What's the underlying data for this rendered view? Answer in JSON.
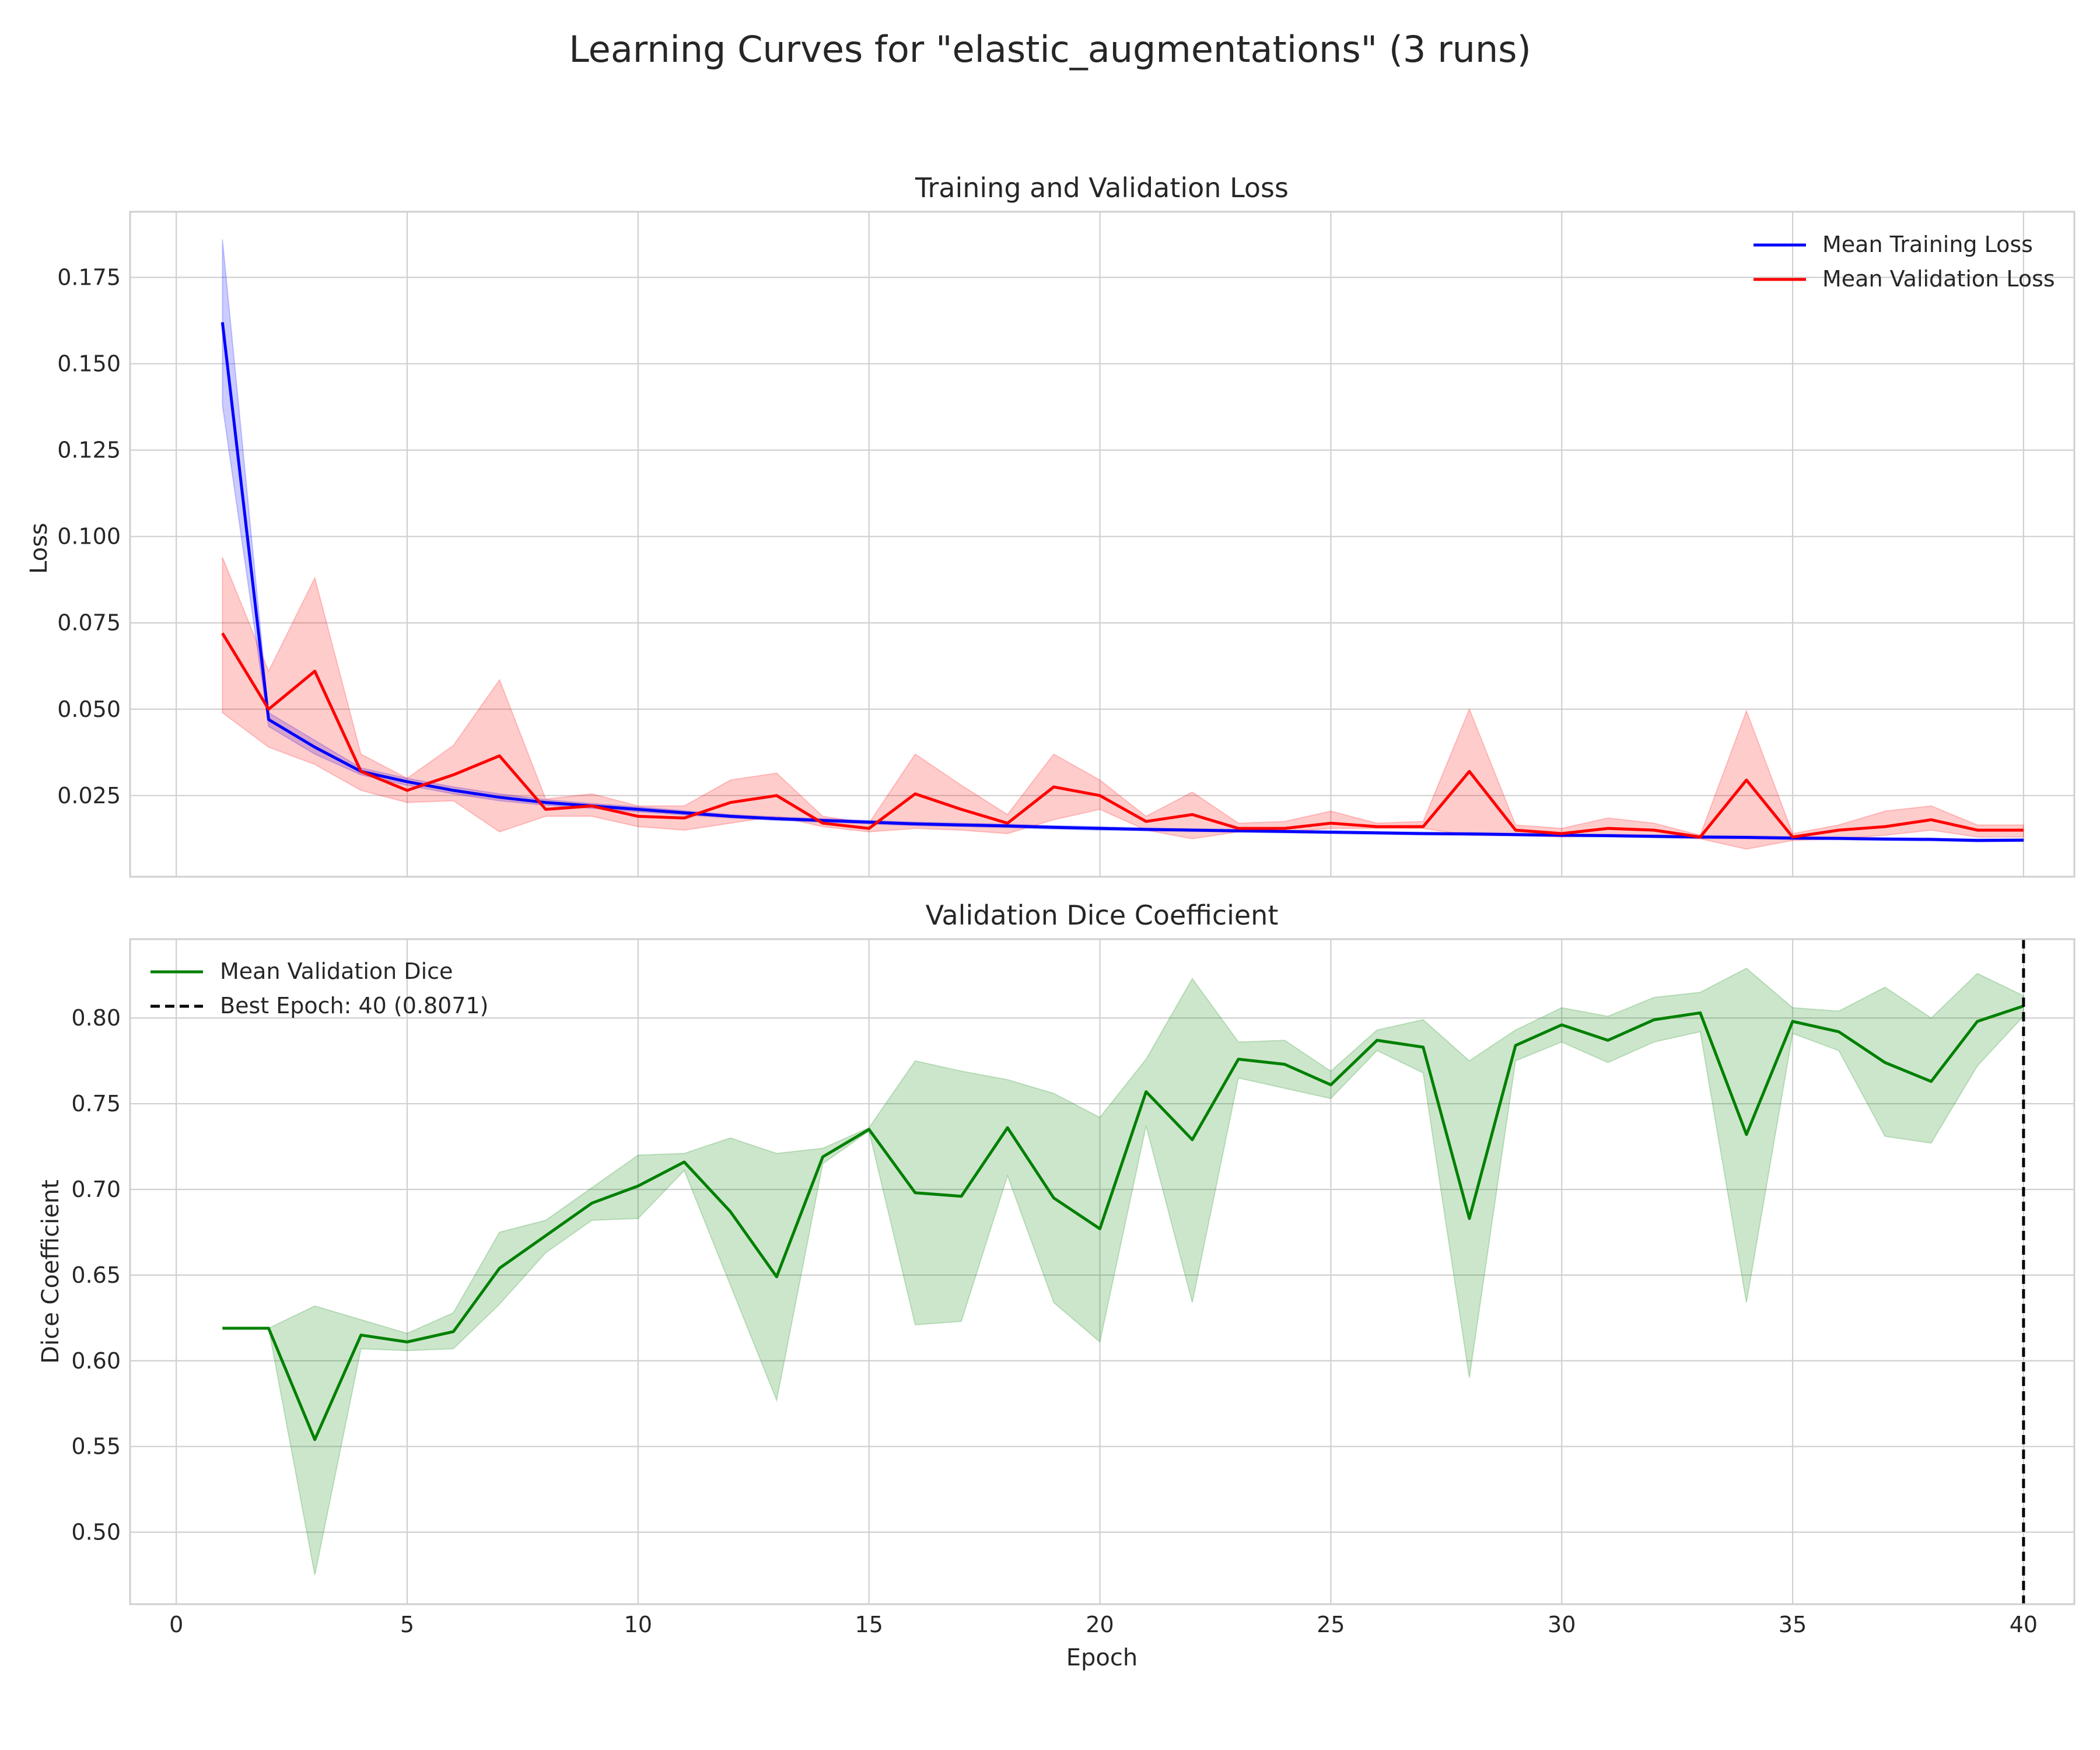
{
  "figure": {
    "title": "Learning Curves for \"elastic_augmentations\" (3 runs)"
  },
  "chart_data": [
    {
      "type": "line",
      "title": "Training and Validation Loss",
      "xlabel": "",
      "ylabel": "Loss",
      "xlim": [
        -1,
        41.1
      ],
      "ylim": [
        0.0015,
        0.194
      ],
      "xticks": [
        0,
        5,
        10,
        15,
        20,
        25,
        30,
        35,
        40
      ],
      "yticks": [
        0.025,
        0.05,
        0.075,
        0.1,
        0.125,
        0.15,
        0.175
      ],
      "ytick_labels": [
        "0.025",
        "0.050",
        "0.075",
        "0.100",
        "0.125",
        "0.150",
        "0.175"
      ],
      "grid": true,
      "legend_position": "top-right",
      "x": [
        1,
        2,
        3,
        4,
        5,
        6,
        7,
        8,
        9,
        10,
        11,
        12,
        13,
        14,
        15,
        16,
        17,
        18,
        19,
        20,
        21,
        22,
        23,
        24,
        25,
        26,
        27,
        28,
        29,
        30,
        31,
        32,
        33,
        34,
        35,
        36,
        37,
        38,
        39,
        40
      ],
      "series": [
        {
          "name": "Mean Training Loss",
          "color": "#0000ff",
          "values": [
            0.162,
            0.047,
            0.039,
            0.032,
            0.029,
            0.0265,
            0.0245,
            0.023,
            0.022,
            0.021,
            0.02,
            0.019,
            0.0183,
            0.0178,
            0.0173,
            0.0168,
            0.0165,
            0.0162,
            0.0158,
            0.0155,
            0.0152,
            0.015,
            0.0148,
            0.0146,
            0.0144,
            0.0142,
            0.014,
            0.0139,
            0.0137,
            0.0135,
            0.0134,
            0.0132,
            0.013,
            0.0129,
            0.0127,
            0.0126,
            0.0124,
            0.0123,
            0.012,
            0.0121
          ],
          "lower": [
            0.138,
            0.045,
            0.037,
            0.031,
            0.028,
            0.0255,
            0.0235,
            0.0222,
            0.0213,
            0.0203,
            0.0194,
            0.0185,
            0.0178,
            0.0173,
            0.0168,
            0.0163,
            0.016,
            0.0157,
            0.0153,
            0.015,
            0.0148,
            0.0146,
            0.0144,
            0.0142,
            0.014,
            0.0138,
            0.0136,
            0.0135,
            0.0133,
            0.0131,
            0.013,
            0.0128,
            0.0126,
            0.0125,
            0.0123,
            0.0122,
            0.012,
            0.0119,
            0.0116,
            0.0117
          ],
          "upper": [
            0.186,
            0.049,
            0.041,
            0.033,
            0.03,
            0.0275,
            0.0255,
            0.0238,
            0.0227,
            0.0217,
            0.0206,
            0.0195,
            0.0188,
            0.0183,
            0.0178,
            0.0173,
            0.017,
            0.0167,
            0.0163,
            0.016,
            0.0156,
            0.0154,
            0.0152,
            0.015,
            0.0148,
            0.0146,
            0.0144,
            0.0143,
            0.0141,
            0.0139,
            0.0138,
            0.0136,
            0.0134,
            0.0133,
            0.0131,
            0.013,
            0.0128,
            0.0127,
            0.0124,
            0.0125
          ]
        },
        {
          "name": "Mean Validation Loss",
          "color": "#ff0000",
          "values": [
            0.072,
            0.05,
            0.061,
            0.032,
            0.0265,
            0.031,
            0.0365,
            0.021,
            0.022,
            0.019,
            0.0185,
            0.023,
            0.025,
            0.017,
            0.0155,
            0.0255,
            0.021,
            0.017,
            0.0275,
            0.025,
            0.0175,
            0.0195,
            0.0155,
            0.0155,
            0.017,
            0.016,
            0.016,
            0.032,
            0.015,
            0.014,
            0.0155,
            0.015,
            0.013,
            0.0295,
            0.013,
            0.015,
            0.016,
            0.018,
            0.015,
            0.015
          ],
          "lower": [
            0.049,
            0.039,
            0.034,
            0.0265,
            0.023,
            0.0235,
            0.0145,
            0.019,
            0.019,
            0.016,
            0.015,
            0.017,
            0.019,
            0.016,
            0.0145,
            0.0155,
            0.015,
            0.014,
            0.018,
            0.021,
            0.015,
            0.0125,
            0.0145,
            0.0145,
            0.0155,
            0.0155,
            0.0155,
            0.0135,
            0.0135,
            0.013,
            0.0135,
            0.013,
            0.0125,
            0.0095,
            0.012,
            0.0125,
            0.0135,
            0.015,
            0.013,
            0.013
          ],
          "upper": [
            0.094,
            0.061,
            0.088,
            0.037,
            0.03,
            0.0395,
            0.0585,
            0.024,
            0.0255,
            0.022,
            0.022,
            0.0295,
            0.0315,
            0.019,
            0.017,
            0.037,
            0.028,
            0.0195,
            0.037,
            0.0295,
            0.019,
            0.026,
            0.017,
            0.0175,
            0.0205,
            0.017,
            0.0175,
            0.05,
            0.0165,
            0.0155,
            0.0185,
            0.017,
            0.0135,
            0.0495,
            0.014,
            0.0165,
            0.0205,
            0.022,
            0.0165,
            0.0165
          ]
        }
      ]
    },
    {
      "type": "line",
      "title": "Validation Dice Coefficient",
      "xlabel": "Epoch",
      "ylabel": "Dice Coefficient",
      "xlim": [
        -1,
        41.1
      ],
      "ylim": [
        0.458,
        0.846
      ],
      "xticks": [
        0,
        5,
        10,
        15,
        20,
        25,
        30,
        35,
        40
      ],
      "yticks": [
        0.5,
        0.55,
        0.6,
        0.65,
        0.7,
        0.75,
        0.8
      ],
      "ytick_labels": [
        "0.50",
        "0.55",
        "0.60",
        "0.65",
        "0.70",
        "0.75",
        "0.80"
      ],
      "grid": true,
      "legend_position": "top-left",
      "x": [
        1,
        2,
        3,
        4,
        5,
        6,
        7,
        8,
        9,
        10,
        11,
        12,
        13,
        14,
        15,
        16,
        17,
        18,
        19,
        20,
        21,
        22,
        23,
        24,
        25,
        26,
        27,
        28,
        29,
        30,
        31,
        32,
        33,
        34,
        35,
        36,
        37,
        38,
        39,
        40
      ],
      "series": [
        {
          "name": "Mean Validation Dice",
          "color": "#008000",
          "values": [
            0.619,
            0.619,
            0.554,
            0.615,
            0.611,
            0.617,
            0.654,
            0.673,
            0.692,
            0.702,
            0.716,
            0.687,
            0.649,
            0.719,
            0.735,
            0.698,
            0.696,
            0.736,
            0.695,
            0.677,
            0.757,
            0.729,
            0.776,
            0.773,
            0.761,
            0.787,
            0.783,
            0.683,
            0.784,
            0.796,
            0.787,
            0.799,
            0.803,
            0.732,
            0.798,
            0.792,
            0.774,
            0.763,
            0.798,
            0.807
          ],
          "lower": [
            0.619,
            0.619,
            0.475,
            0.607,
            0.606,
            0.607,
            0.633,
            0.663,
            0.682,
            0.683,
            0.711,
            0.644,
            0.577,
            0.715,
            0.734,
            0.621,
            0.623,
            0.708,
            0.634,
            0.611,
            0.737,
            0.634,
            0.765,
            0.759,
            0.753,
            0.781,
            0.768,
            0.59,
            0.775,
            0.786,
            0.774,
            0.786,
            0.792,
            0.634,
            0.791,
            0.781,
            0.731,
            0.727,
            0.772,
            0.801
          ],
          "upper": [
            0.619,
            0.619,
            0.632,
            0.624,
            0.616,
            0.628,
            0.675,
            0.682,
            0.701,
            0.72,
            0.721,
            0.73,
            0.721,
            0.724,
            0.736,
            0.775,
            0.769,
            0.764,
            0.756,
            0.742,
            0.776,
            0.823,
            0.786,
            0.787,
            0.769,
            0.793,
            0.799,
            0.775,
            0.793,
            0.806,
            0.801,
            0.812,
            0.815,
            0.829,
            0.806,
            0.804,
            0.818,
            0.8,
            0.826,
            0.813
          ]
        }
      ],
      "best_epoch": {
        "label": "Best Epoch: 40 (0.8071)",
        "x": 40,
        "color": "#000000"
      }
    }
  ]
}
